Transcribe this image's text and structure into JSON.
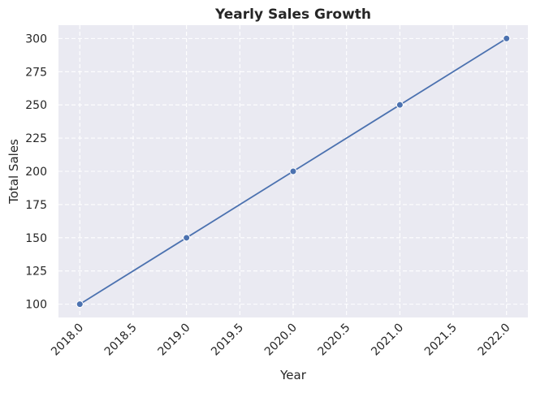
{
  "chart_data": {
    "type": "line",
    "title": "Yearly Sales Growth",
    "xlabel": "Year",
    "ylabel": "Total Sales",
    "x": [
      2018,
      2019,
      2020,
      2021,
      2022
    ],
    "series": [
      {
        "values": [
          100,
          150,
          200,
          250,
          300
        ],
        "color": "#4c72b0",
        "marker": "circle"
      }
    ],
    "xlim": [
      2017.8,
      2022.2
    ],
    "ylim": [
      90,
      310
    ],
    "xticks": [
      "2018.0",
      "2018.5",
      "2019.0",
      "2019.5",
      "2020.0",
      "2020.5",
      "2021.0",
      "2021.5",
      "2022.0"
    ],
    "yticks": [
      "100",
      "125",
      "150",
      "175",
      "200",
      "225",
      "250",
      "275",
      "300"
    ],
    "grid": true,
    "grid_style": "dashed",
    "plot_background": "#eaeaf2",
    "xtick_rotation_degrees": 45
  }
}
